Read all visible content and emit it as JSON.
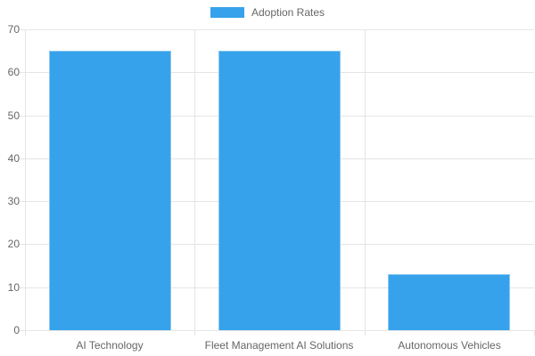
{
  "chart_data": {
    "type": "bar",
    "title": "",
    "legend": {
      "label": "Adoption Rates",
      "position": "top"
    },
    "categories": [
      "AI Technology",
      "Fleet Management AI Solutions",
      "Autonomous Vehicles"
    ],
    "series": [
      {
        "name": "Adoption Rates",
        "values": [
          65,
          65,
          13
        ]
      }
    ],
    "ylim": [
      0,
      70
    ],
    "yticks": [
      0,
      10,
      20,
      30,
      40,
      50,
      60,
      70
    ],
    "grid": true,
    "colors": {
      "bar_fill": "#36A2EB",
      "bar_border": "#8CC8F2",
      "grid": "#E5E5E5",
      "tick_text": "#666666",
      "background": "#FFFFFF"
    }
  }
}
